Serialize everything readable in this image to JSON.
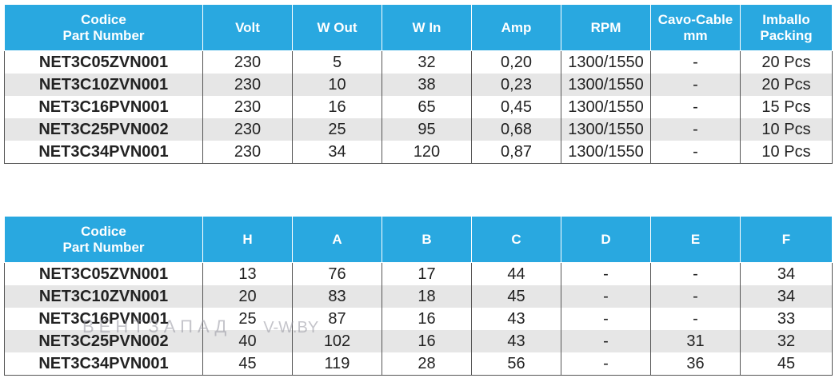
{
  "colors": {
    "header_bg": "#29a8e0",
    "header_text": "#ffffff",
    "alt_row": "#e6e6e6"
  },
  "table1": {
    "headers": [
      "Codice\nPart Number",
      "Volt",
      "W Out",
      "W In",
      "Amp",
      "RPM",
      "Cavo-Cable\nmm",
      "Imballo\nPacking"
    ],
    "rows": [
      [
        "NET3C05ZVN001",
        "230",
        "5",
        "32",
        "0,20",
        "1300/1550",
        "-",
        "20 Pcs"
      ],
      [
        "NET3C10ZVN001",
        "230",
        "10",
        "38",
        "0,23",
        "1300/1550",
        "-",
        "20 Pcs"
      ],
      [
        "NET3C16PVN001",
        "230",
        "16",
        "65",
        "0,45",
        "1300/1550",
        "-",
        "15 Pcs"
      ],
      [
        "NET3C25PVN002",
        "230",
        "25",
        "95",
        "0,68",
        "1300/1550",
        "-",
        "10 Pcs"
      ],
      [
        "NET3C34PVN001",
        "230",
        "34",
        "120",
        "0,87",
        "1300/1550",
        "-",
        "10 Pcs"
      ]
    ]
  },
  "table2": {
    "headers": [
      "Codice\nPart Number",
      "H",
      "A",
      "B",
      "C",
      "D",
      "E",
      "F"
    ],
    "rows": [
      [
        "NET3C05ZVN001",
        "13",
        "76",
        "17",
        "44",
        "-",
        "-",
        "34"
      ],
      [
        "NET3C10ZVN001",
        "20",
        "83",
        "18",
        "45",
        "-",
        "-",
        "34"
      ],
      [
        "NET3C16PVN001",
        "25",
        "87",
        "16",
        "43",
        "-",
        "-",
        "33"
      ],
      [
        "NET3C25PVN002",
        "40",
        "102",
        "16",
        "43",
        "-",
        "31",
        "32"
      ],
      [
        "NET3C34PVN001",
        "45",
        "119",
        "28",
        "56",
        "-",
        "36",
        "45"
      ]
    ]
  },
  "watermark": {
    "brand": "ВЕНТЗАПАД",
    "site": "V-W.BY"
  }
}
